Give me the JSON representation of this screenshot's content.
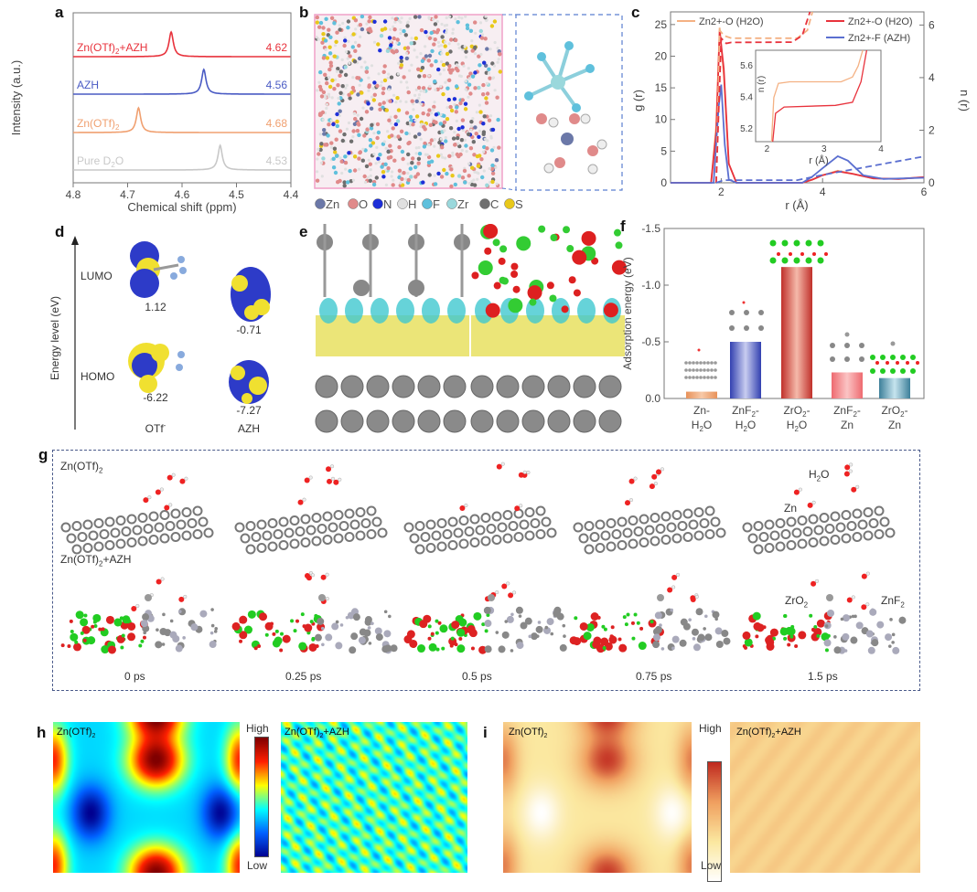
{
  "panels": {
    "a": "a",
    "b": "b",
    "c": "c",
    "d": "d",
    "e": "e",
    "f": "f",
    "g": "g",
    "h": "h",
    "i": "i"
  },
  "chart_data": [
    {
      "panel": "a",
      "type": "line",
      "xlabel": "Chemical shift (ppm)",
      "ylabel": "Intensity (a.u.)",
      "xlim": [
        4.8,
        4.4
      ],
      "xticks": [
        "4.8",
        "4.7",
        "4.6",
        "4.5",
        "4.4"
      ],
      "series": [
        {
          "name": "Zn(OTf)",
          "sub": "2",
          "suffix": "+AZH",
          "peak": 4.62,
          "peak_label": "4.62",
          "color": "#e8323c"
        },
        {
          "name": "AZH",
          "sub": "",
          "suffix": "",
          "peak": 4.56,
          "peak_label": "4.56",
          "color": "#4a5bc4"
        },
        {
          "name": "Zn(OTf)",
          "sub": "2",
          "suffix": "",
          "peak": 4.68,
          "peak_label": "4.68",
          "color": "#f0a070"
        },
        {
          "name": "Pure D",
          "sub": "2",
          "suffix": "O",
          "peak": 4.53,
          "peak_label": "4.53",
          "color": "#c8c8c8"
        }
      ]
    },
    {
      "panel": "c",
      "type": "line",
      "xlabel": "r (Å)",
      "ylabel_left": "g (r)",
      "ylabel_right": "n (r)",
      "xlim": [
        1,
        6
      ],
      "ylim_left": [
        0,
        27
      ],
      "ylim_right": [
        0,
        6.5
      ],
      "xticks": [
        2,
        4,
        6
      ],
      "yticks_left": [
        0,
        5,
        10,
        15,
        20,
        25
      ],
      "yticks_right": [
        0,
        2,
        4,
        6
      ],
      "legend": [
        {
          "label": "Zn2+-O (H2O)",
          "color": "#f4b183",
          "position": "top-left"
        },
        {
          "label": "Zn2+-O (H2O)",
          "color": "#e8323c",
          "position": "top-right"
        },
        {
          "label": "Zn2+-F (AZH)",
          "color": "#5b6fd0",
          "position": "top-right"
        }
      ],
      "series": [
        {
          "name": "Zn2+-O (H2O)",
          "axis": "left",
          "style": "solid",
          "color": "#f4b183",
          "points": [
            [
              1,
              0
            ],
            [
              1.8,
              0
            ],
            [
              1.9,
              9
            ],
            [
              1.97,
              24.5
            ],
            [
              2.05,
              17
            ],
            [
              2.15,
              3
            ],
            [
              2.3,
              0
            ],
            [
              3.6,
              0
            ],
            [
              3.8,
              0.5
            ],
            [
              4.0,
              1.2
            ],
            [
              4.3,
              1.9
            ],
            [
              4.6,
              1.4
            ],
            [
              5,
              0.7
            ],
            [
              5.5,
              0.6
            ],
            [
              6,
              0.9
            ]
          ]
        },
        {
          "name": "Zn2+-O (H2O)",
          "axis": "left",
          "style": "solid",
          "color": "#e8323c",
          "points": [
            [
              1,
              0
            ],
            [
              1.8,
              0
            ],
            [
              1.9,
              8
            ],
            [
              1.97,
              24
            ],
            [
              2.05,
              18
            ],
            [
              2.15,
              3
            ],
            [
              2.3,
              0
            ],
            [
              3.6,
              0
            ],
            [
              3.8,
              0.5
            ],
            [
              4.0,
              1.2
            ],
            [
              4.3,
              1.8
            ],
            [
              4.6,
              1.4
            ],
            [
              5,
              0.7
            ],
            [
              5.5,
              0.6
            ],
            [
              6,
              0.9
            ]
          ]
        },
        {
          "name": "Zn2+-F (AZH)",
          "axis": "left",
          "style": "solid",
          "color": "#5b6fd0",
          "points": [
            [
              1,
              0
            ],
            [
              1.85,
              0
            ],
            [
              1.95,
              12
            ],
            [
              2.0,
              15.5
            ],
            [
              2.07,
              6
            ],
            [
              2.15,
              0.5
            ],
            [
              2.3,
              0
            ],
            [
              3.6,
              0
            ],
            [
              3.8,
              1
            ],
            [
              4.0,
              2.3
            ],
            [
              4.3,
              4.2
            ],
            [
              4.5,
              3.5
            ],
            [
              4.8,
              1.2
            ],
            [
              5.2,
              0.6
            ],
            [
              6,
              0.8
            ]
          ]
        },
        {
          "name": "Zn2+-O (H2O)",
          "axis": "right",
          "style": "dashed",
          "color": "#f4b183",
          "points": [
            [
              1.9,
              0
            ],
            [
              1.97,
              5.8
            ],
            [
              2.05,
              5.6
            ],
            [
              2.2,
              5.5
            ],
            [
              3.5,
              5.5
            ],
            [
              3.7,
              5.8
            ],
            [
              3.8,
              6.5
            ]
          ]
        },
        {
          "name": "Zn2+-O (H2O)",
          "axis": "right",
          "style": "dashed",
          "color": "#e8323c",
          "points": [
            [
              1.9,
              0
            ],
            [
              2.0,
              5.5
            ],
            [
              2.1,
              5.3
            ],
            [
              2.2,
              5.34
            ],
            [
              3.4,
              5.35
            ],
            [
              3.6,
              5.6
            ],
            [
              3.75,
              6.5
            ]
          ]
        },
        {
          "name": "Zn2+-F (AZH)",
          "axis": "right",
          "style": "dashed",
          "color": "#5b6fd0",
          "points": [
            [
              1.9,
              0
            ],
            [
              2.05,
              0.1
            ],
            [
              3.5,
              0.1
            ],
            [
              4,
              0.3
            ],
            [
              6,
              1.0
            ]
          ]
        }
      ],
      "inset": {
        "xlabel": "r (Å)",
        "ylabel": "n (r)",
        "xlim": [
          1.8,
          4
        ],
        "ylim": [
          5.12,
          5.7
        ],
        "xticks": [
          2,
          3,
          4
        ],
        "yticks": [
          5.2,
          5.4,
          5.6
        ],
        "series": [
          {
            "color": "#f4b183",
            "points": [
              [
                2.08,
                5.12
              ],
              [
                2.12,
                5.4
              ],
              [
                2.2,
                5.49
              ],
              [
                2.4,
                5.5
              ],
              [
                3.3,
                5.5
              ],
              [
                3.5,
                5.53
              ],
              [
                3.6,
                5.6
              ],
              [
                3.68,
                5.7
              ]
            ]
          },
          {
            "color": "#e8323c",
            "points": [
              [
                2.1,
                5.12
              ],
              [
                2.15,
                5.3
              ],
              [
                2.3,
                5.34
              ],
              [
                3.2,
                5.35
              ],
              [
                3.5,
                5.37
              ],
              [
                3.65,
                5.5
              ],
              [
                3.75,
                5.7
              ]
            ]
          }
        ]
      }
    },
    {
      "panel": "f",
      "type": "bar",
      "ylabel": "Adsorption energy (eV)",
      "ylim": [
        0,
        -1.5
      ],
      "yticks": [
        "0.0",
        "-0.5",
        "-1.0",
        "-1.5"
      ],
      "categories": [
        {
          "line1": "Zn-",
          "line2": "H",
          "sub": "2",
          "tail": "O"
        },
        {
          "line1": "ZnF",
          "sub1": "2",
          "dash": "-",
          "line2": "H",
          "sub": "2",
          "tail": "O"
        },
        {
          "line1": "ZrO",
          "sub1": "2",
          "dash": "-",
          "line2": "H",
          "sub": "2",
          "tail": "O"
        },
        {
          "line1": "ZnF",
          "sub1": "2",
          "dash": "-",
          "line2": "Zn",
          "sub": "",
          "tail": ""
        },
        {
          "line1": "ZrO",
          "sub1": "2",
          "dash": "-",
          "line2": "Zn",
          "sub": "",
          "tail": ""
        }
      ],
      "values": [
        -0.06,
        -0.5,
        -1.16,
        -0.23,
        -0.18
      ],
      "colors": [
        [
          "#f7c9a8",
          "#e8925a"
        ],
        [
          "#c8cdf0",
          "#3240b0"
        ],
        [
          "#f5b9aa",
          "#c0302a"
        ],
        [
          "#fbc4c4",
          "#ee6a70"
        ],
        [
          "#c6e4ee",
          "#3d7f9a"
        ]
      ]
    }
  ],
  "panel_b": {
    "legend": [
      "Zn",
      "O",
      "N",
      "H",
      "F",
      "Zr",
      "C",
      "S"
    ],
    "legend_colors": [
      "#6b78a8",
      "#e08a8a",
      "#1e2fd8",
      "#e0e0e0",
      "#5fc0dc",
      "#9ad8dc",
      "#6e6e6e",
      "#e8c81a"
    ]
  },
  "panel_d": {
    "axis_label": "Energy level (eV)",
    "rows": [
      "LUMO",
      "HOMO"
    ],
    "molecules": [
      {
        "name": "OTf",
        "sup": "-",
        "lumo": "1.12",
        "homo": "-6.22"
      },
      {
        "name": "AZH",
        "sup": "",
        "lumo": "-0.71",
        "homo": "-7.27"
      }
    ]
  },
  "panel_g": {
    "row1_label": "Zn(OTf)",
    "row1_sub": "2",
    "row2_label": "Zn(OTf)",
    "row2_sub": "2",
    "row2_suffix": "+AZH",
    "times": [
      "0 ps",
      "0.25 ps",
      "0.5 ps",
      "0.75 ps",
      "1.5 ps"
    ],
    "annotations": {
      "h2o": "H",
      "h2o_sub": "2",
      "h2o_tail": "O",
      "zn": "Zn",
      "zro2": "ZrO",
      "zro2_sub": "2",
      "znf2": "ZnF",
      "znf2_sub": "2"
    }
  },
  "panel_h": {
    "map1_label": "Zn(OTf)",
    "map1_sub": "2",
    "map2_label": "Zn(OTf)",
    "map2_sub": "2",
    "map2_suffix": "+AZH",
    "scale_high": "High",
    "scale_low": "Low",
    "colormap": [
      "#00008f",
      "#0060ff",
      "#00ffff",
      "#ffff00",
      "#ff2000",
      "#800000"
    ]
  },
  "panel_i": {
    "map1_label": "Zn(OTf)",
    "map1_sub": "2",
    "map2_label": "Zn(OTf)",
    "map2_sub": "2",
    "map2_suffix": "+AZH",
    "scale_high": "High",
    "scale_low": "Low",
    "colormap": [
      "#ffffff",
      "#fbe8a0",
      "#f0a060",
      "#c02a20"
    ]
  }
}
